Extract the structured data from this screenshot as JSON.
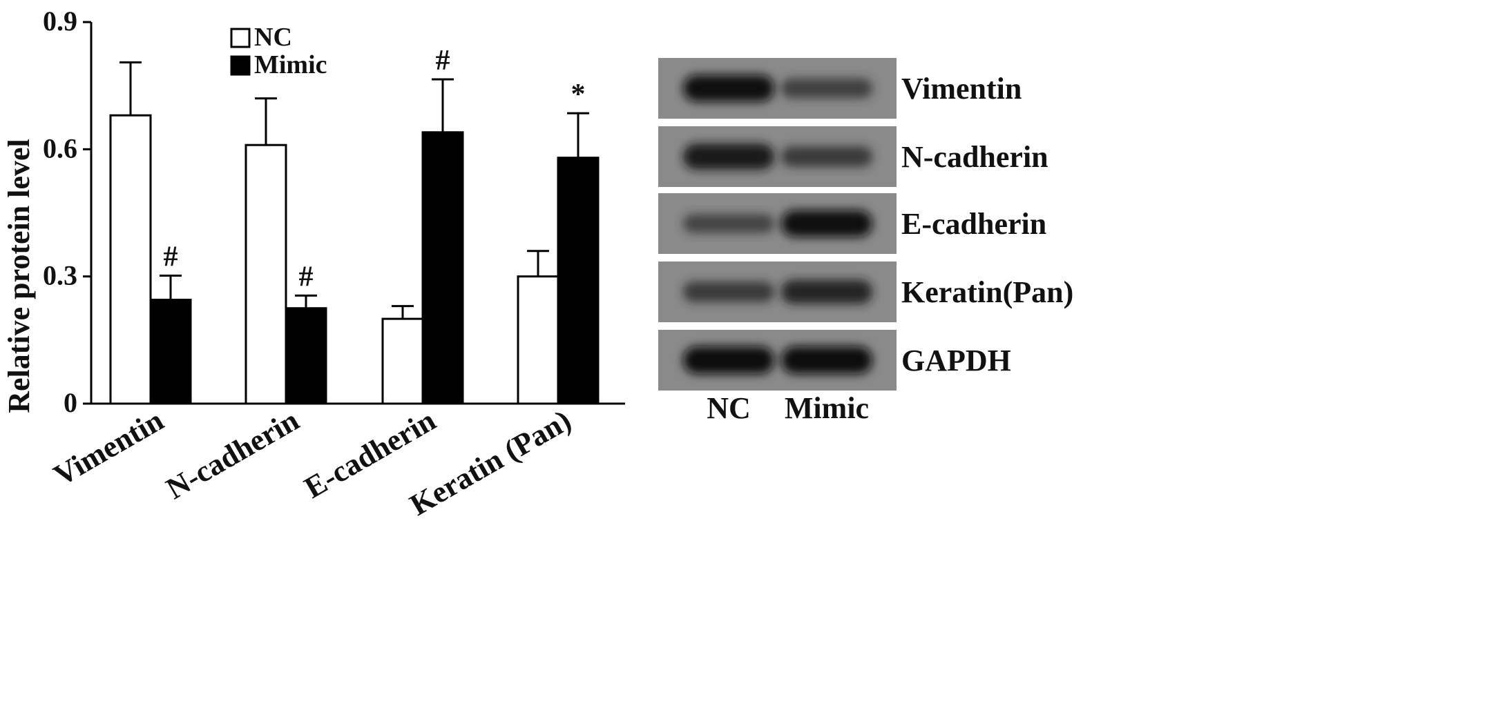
{
  "chart_data": [
    {
      "type": "bar",
      "title": "",
      "xlabel": "",
      "ylabel": "Relative protein level",
      "ylim": [
        0,
        0.9
      ],
      "yticks": [
        "0",
        "0.3",
        "0.6",
        "0.9"
      ],
      "ytick_values": [
        0,
        0.3,
        0.6,
        0.9
      ],
      "grid": false,
      "legend_position": "top-center",
      "categories": [
        "Vimentin",
        "N-cadherin",
        "E-cadherin",
        "Keratin (Pan)"
      ],
      "series": [
        {
          "name": "NC",
          "color": "#ffffff",
          "values": [
            0.68,
            0.61,
            0.2,
            0.3
          ],
          "errors": [
            0.125,
            0.11,
            0.03,
            0.06
          ],
          "annotations": [
            "",
            "",
            "",
            ""
          ]
        },
        {
          "name": "Mimic",
          "color": "#000000",
          "values": [
            0.245,
            0.225,
            0.64,
            0.58
          ],
          "errors": [
            0.057,
            0.03,
            0.125,
            0.105
          ],
          "annotations": [
            "#",
            "#",
            "#",
            "*"
          ]
        }
      ]
    },
    {
      "type": "blot",
      "bands": [
        "Vimentin",
        "N-cadherin",
        "E-cadherin",
        "Keratin(Pan)",
        "GAPDH"
      ],
      "lanes": [
        "NC",
        "Mimic"
      ],
      "intensity": [
        [
          0.95,
          0.55
        ],
        [
          0.9,
          0.6
        ],
        [
          0.5,
          0.95
        ],
        [
          0.6,
          0.8
        ],
        [
          1.0,
          1.0
        ]
      ]
    }
  ]
}
